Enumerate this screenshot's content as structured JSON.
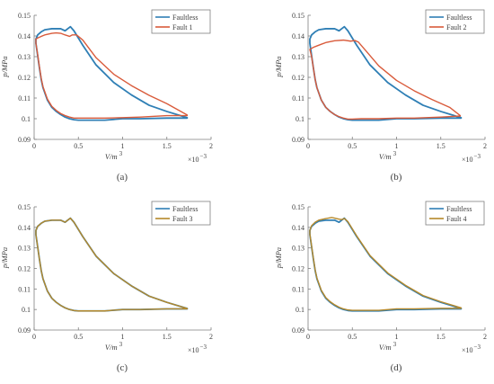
{
  "figure": {
    "panel_captions": [
      "(a)",
      "(b)",
      "(c)",
      "(d)"
    ]
  },
  "colors": {
    "faultless": "#2f7fb5",
    "fault1": "#d95b3b",
    "fault2": "#d95b3b",
    "fault3": "#b5882a",
    "fault4": "#b5882a",
    "axis": "#7f7f7f",
    "text": "#404040"
  },
  "chart_data": [
    {
      "type": "line",
      "panel": "(a)",
      "xlabel": "V/m",
      "xlabel_sup": "3",
      "ylabel": "p/MPa",
      "x_multiplier": "×10",
      "x_multiplier_exp": "−3",
      "xlim": [
        0,
        2
      ],
      "ylim": [
        0.09,
        0.15
      ],
      "xticks": [
        "0",
        "0.5",
        "1",
        "1.5",
        "2"
      ],
      "yticks": [
        "0.09",
        "0.1",
        "0.11",
        "0.12",
        "0.13",
        "0.14",
        "0.15"
      ],
      "legend_position": "top-right",
      "series": [
        {
          "name": "Faultless",
          "color_key": "faultless",
          "x": [
            0.02,
            0.04,
            0.08,
            0.12,
            0.2,
            0.3,
            0.35,
            0.38,
            0.41,
            0.45,
            0.55,
            0.7,
            0.9,
            1.1,
            1.3,
            1.5,
            1.73,
            1.73,
            1.5,
            1.2,
            1.0,
            0.8,
            0.6,
            0.5,
            0.45,
            0.4,
            0.35,
            0.3,
            0.25,
            0.2,
            0.15,
            0.1,
            0.08,
            0.06,
            0.04,
            0.02,
            0.02
          ],
          "y": [
            0.1385,
            0.1405,
            0.142,
            0.143,
            0.1435,
            0.1435,
            0.1425,
            0.1435,
            0.1445,
            0.1425,
            0.1355,
            0.126,
            0.1175,
            0.1115,
            0.1065,
            0.1035,
            0.1005,
            0.1003,
            0.1003,
            0.1,
            0.1,
            0.0993,
            0.0993,
            0.0993,
            0.0995,
            0.1,
            0.1008,
            0.102,
            0.1035,
            0.1055,
            0.109,
            0.115,
            0.119,
            0.1245,
            0.1305,
            0.1365,
            0.1385
          ]
        },
        {
          "name": "Fault 1",
          "color_key": "fault1",
          "x": [
            0.02,
            0.04,
            0.08,
            0.12,
            0.2,
            0.25,
            0.3,
            0.35,
            0.4,
            0.43,
            0.48,
            0.55,
            0.7,
            0.9,
            1.1,
            1.3,
            1.5,
            1.73,
            1.73,
            1.5,
            1.2,
            1.0,
            0.8,
            0.6,
            0.5,
            0.45,
            0.4,
            0.35,
            0.3,
            0.25,
            0.2,
            0.15,
            0.1,
            0.08,
            0.06,
            0.04,
            0.02,
            0.02
          ],
          "y": [
            0.1385,
            0.139,
            0.1398,
            0.1405,
            0.1413,
            0.1415,
            0.1413,
            0.1405,
            0.1398,
            0.1405,
            0.1405,
            0.138,
            0.1295,
            0.1215,
            0.116,
            0.1113,
            0.1073,
            0.1018,
            0.1015,
            0.1015,
            0.1008,
            0.1005,
            0.1003,
            0.1003,
            0.1003,
            0.1003,
            0.1008,
            0.1015,
            0.1025,
            0.104,
            0.106,
            0.1095,
            0.1155,
            0.1195,
            0.125,
            0.131,
            0.1365,
            0.1385
          ]
        }
      ]
    },
    {
      "type": "line",
      "panel": "(b)",
      "xlabel": "V/m",
      "xlabel_sup": "3",
      "ylabel": "p/MPa",
      "x_multiplier": "×10",
      "x_multiplier_exp": "−3",
      "xlim": [
        0,
        2
      ],
      "ylim": [
        0.09,
        0.15
      ],
      "xticks": [
        "0",
        "0.5",
        "1",
        "1.5",
        "2"
      ],
      "yticks": [
        "0.09",
        "0.1",
        "0.11",
        "0.12",
        "0.13",
        "0.14",
        "0.15"
      ],
      "legend_position": "top-right",
      "series": [
        {
          "name": "Faultless",
          "color_key": "faultless",
          "x": [
            0.02,
            0.04,
            0.08,
            0.12,
            0.2,
            0.3,
            0.35,
            0.38,
            0.41,
            0.45,
            0.55,
            0.7,
            0.9,
            1.1,
            1.3,
            1.5,
            1.73,
            1.73,
            1.5,
            1.2,
            1.0,
            0.8,
            0.6,
            0.5,
            0.45,
            0.4,
            0.35,
            0.3,
            0.25,
            0.2,
            0.15,
            0.1,
            0.08,
            0.06,
            0.04,
            0.02,
            0.02
          ],
          "y": [
            0.1385,
            0.1405,
            0.142,
            0.143,
            0.1435,
            0.1435,
            0.1425,
            0.1435,
            0.1445,
            0.1425,
            0.1355,
            0.126,
            0.1175,
            0.1115,
            0.1065,
            0.1035,
            0.1005,
            0.1003,
            0.1003,
            0.1,
            0.1,
            0.0993,
            0.0993,
            0.0993,
            0.0995,
            0.1,
            0.1008,
            0.102,
            0.1035,
            0.1055,
            0.109,
            0.115,
            0.119,
            0.1245,
            0.1305,
            0.1365,
            0.1385
          ]
        },
        {
          "name": "Fault 2",
          "color_key": "fault2",
          "x": [
            0.02,
            0.04,
            0.06,
            0.1,
            0.15,
            0.2,
            0.3,
            0.4,
            0.48,
            0.53,
            0.57,
            0.65,
            0.8,
            1.0,
            1.2,
            1.4,
            1.6,
            1.72,
            1.72,
            1.5,
            1.2,
            1.0,
            0.8,
            0.6,
            0.5,
            0.45,
            0.4,
            0.35,
            0.3,
            0.25,
            0.2,
            0.15,
            0.1,
            0.08,
            0.06,
            0.04,
            0.02,
            0.02
          ],
          "y": [
            0.1335,
            0.134,
            0.1345,
            0.1352,
            0.136,
            0.1368,
            0.1377,
            0.138,
            0.1375,
            0.1378,
            0.137,
            0.133,
            0.1255,
            0.1185,
            0.1135,
            0.1093,
            0.1055,
            0.1015,
            0.1013,
            0.1008,
            0.1003,
            0.1003,
            0.1,
            0.1,
            0.0998,
            0.0998,
            0.1003,
            0.101,
            0.102,
            0.1035,
            0.1055,
            0.109,
            0.115,
            0.119,
            0.1245,
            0.13,
            0.1335,
            0.1335
          ]
        }
      ]
    },
    {
      "type": "line",
      "panel": "(c)",
      "xlabel": "V/m",
      "xlabel_sup": "3",
      "ylabel": "p/MPa",
      "x_multiplier": "×10",
      "x_multiplier_exp": "−3",
      "xlim": [
        0,
        2
      ],
      "ylim": [
        0.09,
        0.15
      ],
      "xticks": [
        "0",
        "0.5",
        "1",
        "1.5",
        "2"
      ],
      "yticks": [
        "0.09",
        "0.1",
        "0.11",
        "0.12",
        "0.13",
        "0.14",
        "0.15"
      ],
      "legend_position": "top-right",
      "series": [
        {
          "name": "Faultless",
          "color_key": "faultless",
          "x": [
            0.02,
            0.04,
            0.08,
            0.12,
            0.2,
            0.3,
            0.35,
            0.38,
            0.41,
            0.45,
            0.55,
            0.7,
            0.9,
            1.1,
            1.3,
            1.5,
            1.73,
            1.73,
            1.5,
            1.2,
            1.0,
            0.8,
            0.6,
            0.5,
            0.45,
            0.4,
            0.35,
            0.3,
            0.25,
            0.2,
            0.15,
            0.1,
            0.08,
            0.06,
            0.04,
            0.02,
            0.02
          ],
          "y": [
            0.1385,
            0.1405,
            0.142,
            0.143,
            0.1435,
            0.1435,
            0.1425,
            0.1435,
            0.1445,
            0.1425,
            0.1355,
            0.126,
            0.1175,
            0.1115,
            0.1065,
            0.1035,
            0.1005,
            0.1003,
            0.1003,
            0.1,
            0.1,
            0.0993,
            0.0993,
            0.0993,
            0.0995,
            0.1,
            0.1008,
            0.102,
            0.1035,
            0.1055,
            0.109,
            0.115,
            0.119,
            0.1245,
            0.1305,
            0.1365,
            0.1385
          ]
        },
        {
          "name": "Fault 3",
          "color_key": "fault3",
          "x": [
            0.02,
            0.04,
            0.08,
            0.12,
            0.2,
            0.3,
            0.35,
            0.38,
            0.41,
            0.45,
            0.55,
            0.7,
            0.9,
            1.1,
            1.3,
            1.5,
            1.73,
            1.73,
            1.5,
            1.2,
            1.0,
            0.8,
            0.6,
            0.5,
            0.45,
            0.4,
            0.35,
            0.3,
            0.25,
            0.2,
            0.15,
            0.1,
            0.08,
            0.06,
            0.04,
            0.02,
            0.02
          ],
          "y": [
            0.1385,
            0.1405,
            0.142,
            0.143,
            0.1435,
            0.1435,
            0.1425,
            0.1435,
            0.1445,
            0.1425,
            0.1355,
            0.126,
            0.1175,
            0.1115,
            0.1065,
            0.1035,
            0.1005,
            0.1003,
            0.1003,
            0.1,
            0.1,
            0.0993,
            0.0993,
            0.0993,
            0.0995,
            0.1,
            0.1008,
            0.102,
            0.1035,
            0.1055,
            0.109,
            0.115,
            0.119,
            0.1245,
            0.1305,
            0.1365,
            0.1385
          ]
        }
      ]
    },
    {
      "type": "line",
      "panel": "(d)",
      "xlabel": "V/m",
      "xlabel_sup": "3",
      "ylabel": "p/MPa",
      "x_multiplier": "×10",
      "x_multiplier_exp": "−3",
      "xlim": [
        0,
        2
      ],
      "ylim": [
        0.09,
        0.15
      ],
      "xticks": [
        "0",
        "0.5",
        "1",
        "1.5",
        "2"
      ],
      "yticks": [
        "0.09",
        "0.1",
        "0.11",
        "0.12",
        "0.13",
        "0.14",
        "0.15"
      ],
      "legend_position": "top-right",
      "series": [
        {
          "name": "Faultless",
          "color_key": "faultless",
          "x": [
            0.02,
            0.04,
            0.08,
            0.12,
            0.2,
            0.3,
            0.35,
            0.38,
            0.41,
            0.45,
            0.55,
            0.7,
            0.9,
            1.1,
            1.3,
            1.5,
            1.73,
            1.73,
            1.5,
            1.2,
            1.0,
            0.8,
            0.6,
            0.5,
            0.45,
            0.4,
            0.35,
            0.3,
            0.25,
            0.2,
            0.15,
            0.1,
            0.08,
            0.06,
            0.04,
            0.02,
            0.02
          ],
          "y": [
            0.1385,
            0.1405,
            0.142,
            0.143,
            0.1435,
            0.1435,
            0.1425,
            0.1435,
            0.1445,
            0.1425,
            0.1355,
            0.126,
            0.1175,
            0.1115,
            0.1065,
            0.1035,
            0.1005,
            0.1003,
            0.1003,
            0.1,
            0.1,
            0.0993,
            0.0993,
            0.0993,
            0.0995,
            0.1,
            0.1008,
            0.102,
            0.1035,
            0.1055,
            0.109,
            0.115,
            0.119,
            0.1245,
            0.1305,
            0.1365,
            0.1385
          ]
        },
        {
          "name": "Fault 4",
          "color_key": "fault4",
          "x": [
            0.02,
            0.04,
            0.08,
            0.12,
            0.2,
            0.27,
            0.3,
            0.35,
            0.38,
            0.41,
            0.45,
            0.55,
            0.7,
            0.9,
            1.1,
            1.3,
            1.5,
            1.73,
            1.73,
            1.5,
            1.2,
            1.0,
            0.8,
            0.6,
            0.5,
            0.45,
            0.4,
            0.35,
            0.3,
            0.25,
            0.2,
            0.15,
            0.1,
            0.08,
            0.06,
            0.04,
            0.02,
            0.02
          ],
          "y": [
            0.1385,
            0.1408,
            0.1425,
            0.1435,
            0.1443,
            0.1448,
            0.1445,
            0.144,
            0.1438,
            0.1443,
            0.1428,
            0.1358,
            0.1263,
            0.1178,
            0.1118,
            0.1068,
            0.1038,
            0.1008,
            0.1006,
            0.1006,
            0.1003,
            0.1003,
            0.0996,
            0.0996,
            0.0996,
            0.0998,
            0.1003,
            0.1011,
            0.1023,
            0.1038,
            0.1058,
            0.1093,
            0.1153,
            0.1193,
            0.1248,
            0.1308,
            0.1368,
            0.1385
          ]
        }
      ]
    }
  ]
}
